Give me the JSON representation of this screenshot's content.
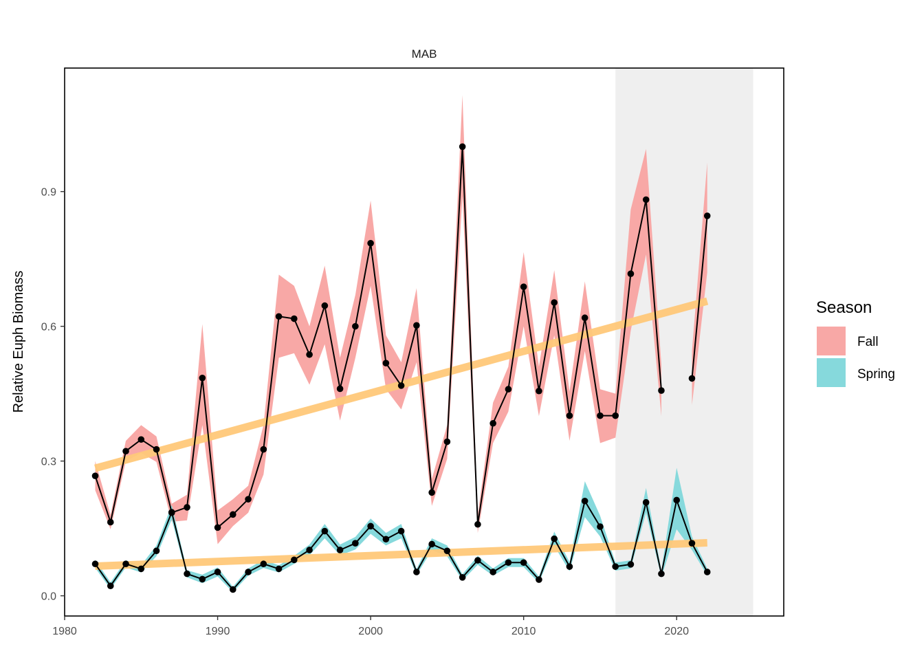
{
  "chart_data": {
    "type": "line",
    "title": "MAB",
    "xlabel": "",
    "ylabel": "Relative Euph Biomass",
    "xlim": [
      1980,
      2027
    ],
    "ylim": [
      -0.045,
      1.175
    ],
    "x_ticks": [
      1980,
      1990,
      2000,
      2010,
      2020
    ],
    "y_ticks": [
      0.0,
      0.3,
      0.6,
      0.9
    ],
    "y_tick_labels": [
      "0.0",
      "0.3",
      "0.6",
      "0.9"
    ],
    "grid": false,
    "legend": {
      "title": "Season",
      "position": "right",
      "entries": [
        "Fall",
        "Spring"
      ]
    },
    "shaded_period": {
      "x_start": 2016,
      "x_end": 2025,
      "color": "#efefef"
    },
    "colors": {
      "Fall": "#f8a8a6",
      "Spring": "#86d9dc",
      "trend": "#ffc97a",
      "line": "#000000"
    },
    "series": [
      {
        "name": "Fall",
        "x": [
          1982,
          1983,
          1984,
          1985,
          1986,
          1987,
          1988,
          1989,
          1990,
          1991,
          1992,
          1993,
          1994,
          1995,
          1996,
          1997,
          1998,
          1999,
          2000,
          2001,
          2002,
          2003,
          2004,
          2005,
          2006,
          2007,
          2008,
          2009,
          2010,
          2011,
          2012,
          2013,
          2014,
          2015,
          2016,
          2017,
          2018,
          2019,
          2021,
          2022
        ],
        "y": [
          0.267,
          0.164,
          0.322,
          0.348,
          0.326,
          0.185,
          0.197,
          0.485,
          0.152,
          0.181,
          0.215,
          0.326,
          0.622,
          0.617,
          0.537,
          0.646,
          0.461,
          0.6,
          0.785,
          0.518,
          0.468,
          0.602,
          0.23,
          0.343,
          1.0,
          0.159,
          0.384,
          0.46,
          0.688,
          0.456,
          0.653,
          0.401,
          0.619,
          0.401,
          0.401,
          0.717,
          0.882,
          0.457,
          0.484,
          0.846
        ],
        "lower": [
          0.235,
          0.148,
          0.3,
          0.318,
          0.298,
          0.165,
          0.168,
          0.38,
          0.115,
          0.155,
          0.185,
          0.27,
          0.53,
          0.54,
          0.47,
          0.56,
          0.39,
          0.53,
          0.69,
          0.46,
          0.415,
          0.52,
          0.2,
          0.305,
          0.89,
          0.14,
          0.34,
          0.41,
          0.6,
          0.4,
          0.58,
          0.345,
          0.545,
          0.34,
          0.352,
          0.59,
          0.76,
          0.4,
          0.425,
          0.72
        ],
        "upper": [
          0.3,
          0.18,
          0.345,
          0.38,
          0.355,
          0.205,
          0.225,
          0.605,
          0.19,
          0.215,
          0.245,
          0.38,
          0.715,
          0.69,
          0.6,
          0.735,
          0.53,
          0.67,
          0.88,
          0.58,
          0.52,
          0.685,
          0.26,
          0.38,
          1.115,
          0.18,
          0.43,
          0.51,
          0.765,
          0.51,
          0.725,
          0.455,
          0.7,
          0.46,
          0.45,
          0.86,
          0.995,
          0.515,
          0.545,
          0.965
        ],
        "trend": {
          "x": [
            1982,
            2022
          ],
          "y": [
            0.284,
            0.656
          ]
        },
        "gaps_after": [
          2019
        ]
      },
      {
        "name": "Spring",
        "x": [
          1982,
          1983,
          1984,
          1985,
          1986,
          1987,
          1988,
          1989,
          1990,
          1991,
          1992,
          1993,
          1994,
          1995,
          1996,
          1997,
          1998,
          1999,
          2000,
          2001,
          2002,
          2003,
          2004,
          2005,
          2006,
          2007,
          2008,
          2009,
          2010,
          2011,
          2012,
          2013,
          2014,
          2015,
          2016,
          2017,
          2018,
          2019,
          2020,
          2021,
          2022
        ],
        "y": [
          0.071,
          0.022,
          0.071,
          0.06,
          0.1,
          0.186,
          0.049,
          0.037,
          0.053,
          0.014,
          0.053,
          0.071,
          0.06,
          0.08,
          0.102,
          0.144,
          0.102,
          0.117,
          0.155,
          0.126,
          0.144,
          0.053,
          0.115,
          0.1,
          0.041,
          0.079,
          0.053,
          0.074,
          0.074,
          0.036,
          0.127,
          0.065,
          0.211,
          0.154,
          0.065,
          0.07,
          0.208,
          0.049,
          0.213,
          0.117,
          0.053
        ],
        "lower": [
          0.062,
          0.015,
          0.063,
          0.052,
          0.088,
          0.17,
          0.041,
          0.028,
          0.043,
          0.008,
          0.045,
          0.062,
          0.052,
          0.071,
          0.09,
          0.128,
          0.09,
          0.103,
          0.138,
          0.112,
          0.128,
          0.046,
          0.102,
          0.088,
          0.034,
          0.069,
          0.045,
          0.064,
          0.064,
          0.029,
          0.111,
          0.055,
          0.175,
          0.132,
          0.056,
          0.061,
          0.185,
          0.041,
          0.148,
          0.102,
          0.045
        ],
        "upper": [
          0.08,
          0.03,
          0.079,
          0.068,
          0.112,
          0.202,
          0.057,
          0.047,
          0.063,
          0.02,
          0.061,
          0.08,
          0.068,
          0.089,
          0.114,
          0.16,
          0.114,
          0.131,
          0.172,
          0.14,
          0.16,
          0.06,
          0.128,
          0.112,
          0.048,
          0.089,
          0.061,
          0.084,
          0.084,
          0.043,
          0.143,
          0.075,
          0.255,
          0.178,
          0.074,
          0.079,
          0.24,
          0.057,
          0.285,
          0.132,
          0.061
        ],
        "trend": {
          "x": [
            1982,
            2022
          ],
          "y": [
            0.066,
            0.118
          ]
        },
        "gaps_after": []
      }
    ]
  }
}
